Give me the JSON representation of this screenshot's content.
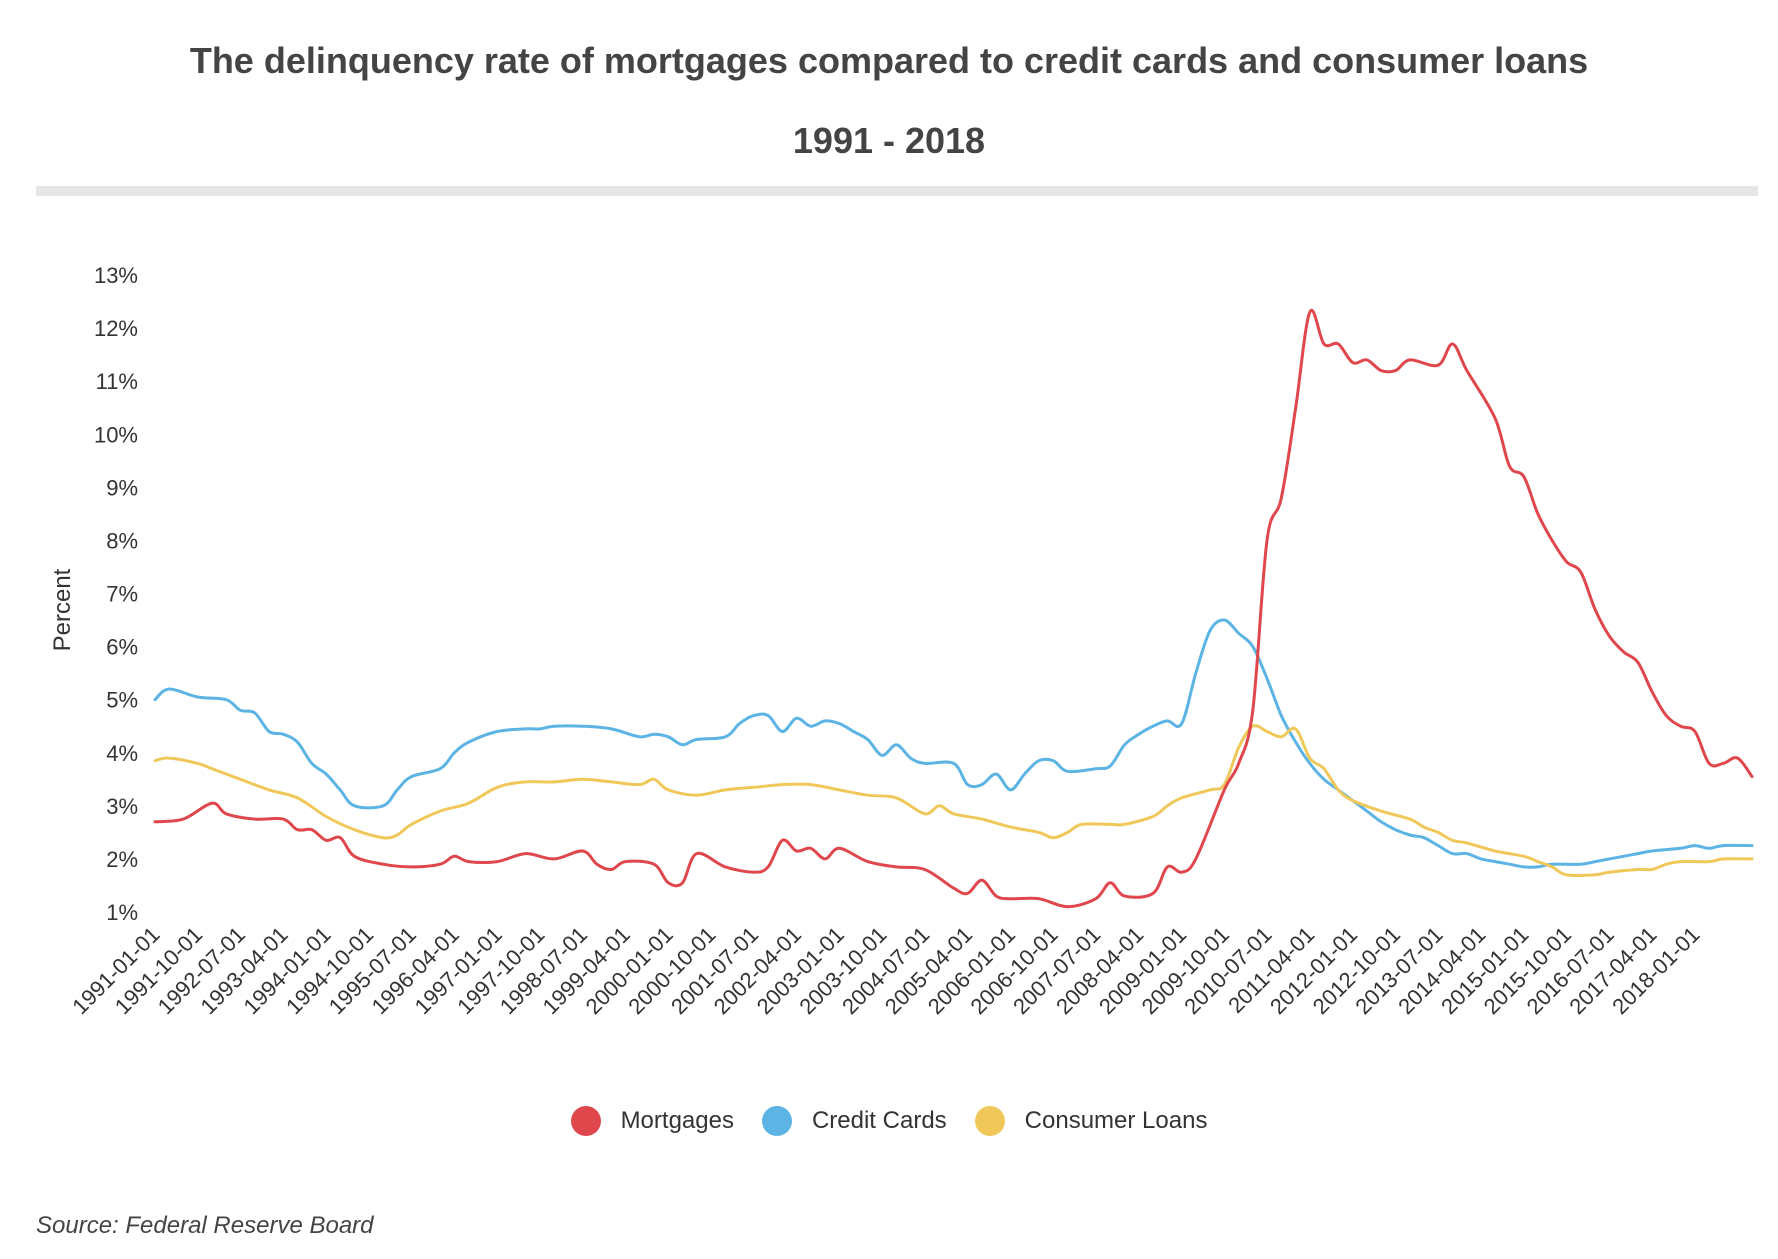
{
  "chart_data": {
    "type": "line",
    "title": "The delinquency rate of mortgages compared to credit cards and consumer loans",
    "subtitle": "1991 - 2018",
    "ylabel": "Percent",
    "xlabel": "",
    "ylim": [
      1,
      13
    ],
    "yticks": [
      "1%",
      "2%",
      "3%",
      "4%",
      "5%",
      "6%",
      "7%",
      "8%",
      "9%",
      "10%",
      "11%",
      "12%",
      "13%"
    ],
    "ytick_values": [
      1,
      2,
      3,
      4,
      5,
      6,
      7,
      8,
      9,
      10,
      11,
      12,
      13
    ],
    "xtick_labels": [
      "1991-01-01",
      "1991-10-01",
      "1992-07-01",
      "1993-04-01",
      "1994-01-01",
      "1994-10-01",
      "1995-07-01",
      "1996-04-01",
      "1997-01-01",
      "1997-10-01",
      "1998-07-01",
      "1999-04-01",
      "2000-01-01",
      "2000-10-01",
      "2001-07-01",
      "2002-04-01",
      "2003-01-01",
      "2003-10-01",
      "2004-07-01",
      "2005-04-01",
      "2006-01-01",
      "2006-10-01",
      "2007-07-01",
      "2008-04-01",
      "2009-01-01",
      "2009-10-01",
      "2010-07-01",
      "2011-04-01",
      "2012-01-01",
      "2012-10-01",
      "2013-07-01",
      "2014-04-01",
      "2015-01-01",
      "2015-10-01",
      "2016-07-01",
      "2017-04-01",
      "2018-01-01"
    ],
    "x_start": "1991-01-01",
    "x_end": "2018-01-01",
    "grid": false,
    "legend": "bottom",
    "series": [
      {
        "name": "Mortgages",
        "color": "#e0474c",
        "points": [
          [
            "1991-01-01",
            2.7
          ],
          [
            "1991-07-01",
            2.75
          ],
          [
            "1992-01-01",
            3.05
          ],
          [
            "1992-04-01",
            2.85
          ],
          [
            "1992-10-01",
            2.75
          ],
          [
            "1993-04-01",
            2.75
          ],
          [
            "1993-07-01",
            2.55
          ],
          [
            "1993-10-01",
            2.55
          ],
          [
            "1994-01-01",
            2.35
          ],
          [
            "1994-04-01",
            2.4
          ],
          [
            "1994-07-01",
            2.05
          ],
          [
            "1995-01-01",
            1.9
          ],
          [
            "1995-07-01",
            1.85
          ],
          [
            "1996-01-01",
            1.9
          ],
          [
            "1996-04-01",
            2.05
          ],
          [
            "1996-07-01",
            1.95
          ],
          [
            "1997-01-01",
            1.95
          ],
          [
            "1997-07-01",
            2.1
          ],
          [
            "1998-01-01",
            2.0
          ],
          [
            "1998-07-01",
            2.15
          ],
          [
            "1998-10-01",
            1.9
          ],
          [
            "1999-01-01",
            1.8
          ],
          [
            "1999-04-01",
            1.95
          ],
          [
            "1999-10-01",
            1.9
          ],
          [
            "2000-01-01",
            1.55
          ],
          [
            "2000-04-01",
            1.55
          ],
          [
            "2000-07-01",
            2.1
          ],
          [
            "2001-01-01",
            1.85
          ],
          [
            "2001-07-01",
            1.75
          ],
          [
            "2001-10-01",
            1.85
          ],
          [
            "2002-01-01",
            2.35
          ],
          [
            "2002-04-01",
            2.15
          ],
          [
            "2002-07-01",
            2.2
          ],
          [
            "2002-10-01",
            2.0
          ],
          [
            "2003-01-01",
            2.2
          ],
          [
            "2003-07-01",
            1.95
          ],
          [
            "2004-01-01",
            1.85
          ],
          [
            "2004-07-01",
            1.8
          ],
          [
            "2005-01-01",
            1.45
          ],
          [
            "2005-04-01",
            1.35
          ],
          [
            "2005-07-01",
            1.6
          ],
          [
            "2005-10-01",
            1.3
          ],
          [
            "2006-01-01",
            1.25
          ],
          [
            "2006-07-01",
            1.25
          ],
          [
            "2007-01-01",
            1.1
          ],
          [
            "2007-07-01",
            1.25
          ],
          [
            "2007-10-01",
            1.55
          ],
          [
            "2008-01-01",
            1.3
          ],
          [
            "2008-07-01",
            1.35
          ],
          [
            "2008-10-01",
            1.85
          ],
          [
            "2009-01-01",
            1.75
          ],
          [
            "2009-04-01",
            2.0
          ],
          [
            "2009-10-01",
            3.3
          ],
          [
            "2010-01-01",
            3.8
          ],
          [
            "2010-04-01",
            4.8
          ],
          [
            "2010-07-01",
            8.0
          ],
          [
            "2010-10-01",
            8.8
          ],
          [
            "2011-01-01",
            10.5
          ],
          [
            "2011-04-01",
            12.3
          ],
          [
            "2011-07-01",
            11.7
          ],
          [
            "2011-10-01",
            11.7
          ],
          [
            "2012-01-01",
            11.35
          ],
          [
            "2012-04-01",
            11.4
          ],
          [
            "2012-07-01",
            11.2
          ],
          [
            "2012-10-01",
            11.2
          ],
          [
            "2013-01-01",
            11.4
          ],
          [
            "2013-07-01",
            11.3
          ],
          [
            "2013-10-01",
            11.7
          ],
          [
            "2014-01-01",
            11.2
          ],
          [
            "2014-07-01",
            10.3
          ],
          [
            "2014-10-01",
            9.4
          ],
          [
            "2015-01-01",
            9.2
          ],
          [
            "2015-04-01",
            8.5
          ],
          [
            "2015-07-01",
            8.0
          ],
          [
            "2015-10-01",
            7.6
          ],
          [
            "2016-01-01",
            7.4
          ],
          [
            "2016-04-01",
            6.7
          ],
          [
            "2016-07-01",
            6.2
          ],
          [
            "2016-10-01",
            5.9
          ],
          [
            "2017-01-01",
            5.7
          ],
          [
            "2017-04-01",
            5.15
          ],
          [
            "2017-07-01",
            4.7
          ],
          [
            "2017-10-01",
            4.5
          ],
          [
            "2018-01-01",
            4.4
          ],
          [
            "2018-04-01",
            3.8
          ],
          [
            "2018-07-01",
            3.8
          ],
          [
            "2018-10-01",
            3.9
          ],
          [
            "2019-01-01",
            3.55
          ]
        ]
      },
      {
        "name": "Credit Cards",
        "color": "#5cb4e5",
        "points": [
          [
            "1991-01-01",
            5.0
          ],
          [
            "1991-04-01",
            5.2
          ],
          [
            "1991-10-01",
            5.05
          ],
          [
            "1992-04-01",
            5.0
          ],
          [
            "1992-07-01",
            4.8
          ],
          [
            "1992-10-01",
            4.75
          ],
          [
            "1993-01-01",
            4.4
          ],
          [
            "1993-04-01",
            4.35
          ],
          [
            "1993-07-01",
            4.2
          ],
          [
            "1993-10-01",
            3.8
          ],
          [
            "1994-01-01",
            3.6
          ],
          [
            "1994-04-01",
            3.3
          ],
          [
            "1994-07-01",
            3.0
          ],
          [
            "1995-01-01",
            3.0
          ],
          [
            "1995-04-01",
            3.3
          ],
          [
            "1995-07-01",
            3.55
          ],
          [
            "1996-01-01",
            3.7
          ],
          [
            "1996-04-01",
            4.0
          ],
          [
            "1996-07-01",
            4.2
          ],
          [
            "1997-01-01",
            4.4
          ],
          [
            "1997-07-01",
            4.45
          ],
          [
            "1997-10-01",
            4.45
          ],
          [
            "1998-01-01",
            4.5
          ],
          [
            "1998-07-01",
            4.5
          ],
          [
            "1999-01-01",
            4.45
          ],
          [
            "1999-07-01",
            4.3
          ],
          [
            "1999-10-01",
            4.35
          ],
          [
            "2000-01-01",
            4.3
          ],
          [
            "2000-04-01",
            4.15
          ],
          [
            "2000-07-01",
            4.25
          ],
          [
            "2001-01-01",
            4.3
          ],
          [
            "2001-04-01",
            4.55
          ],
          [
            "2001-07-01",
            4.7
          ],
          [
            "2001-10-01",
            4.7
          ],
          [
            "2002-01-01",
            4.4
          ],
          [
            "2002-04-01",
            4.65
          ],
          [
            "2002-07-01",
            4.5
          ],
          [
            "2002-10-01",
            4.6
          ],
          [
            "2003-01-01",
            4.55
          ],
          [
            "2003-04-01",
            4.4
          ],
          [
            "2003-07-01",
            4.25
          ],
          [
            "2003-10-01",
            3.95
          ],
          [
            "2004-01-01",
            4.15
          ],
          [
            "2004-04-01",
            3.9
          ],
          [
            "2004-07-01",
            3.8
          ],
          [
            "2005-01-01",
            3.8
          ],
          [
            "2005-04-01",
            3.4
          ],
          [
            "2005-07-01",
            3.4
          ],
          [
            "2005-10-01",
            3.6
          ],
          [
            "2006-01-01",
            3.3
          ],
          [
            "2006-04-01",
            3.6
          ],
          [
            "2006-07-01",
            3.85
          ],
          [
            "2006-10-01",
            3.85
          ],
          [
            "2007-01-01",
            3.65
          ],
          [
            "2007-07-01",
            3.7
          ],
          [
            "2007-10-01",
            3.75
          ],
          [
            "2008-01-01",
            4.15
          ],
          [
            "2008-04-01",
            4.35
          ],
          [
            "2008-07-01",
            4.5
          ],
          [
            "2008-10-01",
            4.6
          ],
          [
            "2009-01-01",
            4.55
          ],
          [
            "2009-04-01",
            5.5
          ],
          [
            "2009-07-01",
            6.3
          ],
          [
            "2009-10-01",
            6.5
          ],
          [
            "2010-01-01",
            6.25
          ],
          [
            "2010-04-01",
            6.0
          ],
          [
            "2010-07-01",
            5.4
          ],
          [
            "2010-10-01",
            4.7
          ],
          [
            "2011-01-01",
            4.2
          ],
          [
            "2011-04-01",
            3.8
          ],
          [
            "2011-07-01",
            3.5
          ],
          [
            "2011-10-01",
            3.3
          ],
          [
            "2012-01-01",
            3.1
          ],
          [
            "2012-04-01",
            2.9
          ],
          [
            "2012-07-01",
            2.7
          ],
          [
            "2012-10-01",
            2.55
          ],
          [
            "2013-01-01",
            2.45
          ],
          [
            "2013-04-01",
            2.4
          ],
          [
            "2013-07-01",
            2.25
          ],
          [
            "2013-10-01",
            2.1
          ],
          [
            "2014-01-01",
            2.1
          ],
          [
            "2014-04-01",
            2.0
          ],
          [
            "2014-07-01",
            1.95
          ],
          [
            "2014-10-01",
            1.9
          ],
          [
            "2015-01-01",
            1.85
          ],
          [
            "2015-04-01",
            1.85
          ],
          [
            "2015-07-01",
            1.9
          ],
          [
            "2016-01-01",
            1.9
          ],
          [
            "2016-04-01",
            1.95
          ],
          [
            "2016-10-01",
            2.05
          ],
          [
            "2017-01-01",
            2.1
          ],
          [
            "2017-04-01",
            2.15
          ],
          [
            "2017-10-01",
            2.2
          ],
          [
            "2018-01-01",
            2.25
          ],
          [
            "2018-04-01",
            2.2
          ],
          [
            "2018-07-01",
            2.25
          ],
          [
            "2019-01-01",
            2.25
          ]
        ]
      },
      {
        "name": "Consumer Loans",
        "color": "#f0c85a",
        "points": [
          [
            "1991-01-01",
            3.85
          ],
          [
            "1991-04-01",
            3.9
          ],
          [
            "1991-10-01",
            3.8
          ],
          [
            "1992-01-01",
            3.7
          ],
          [
            "1992-07-01",
            3.5
          ],
          [
            "1993-01-01",
            3.3
          ],
          [
            "1993-07-01",
            3.15
          ],
          [
            "1994-01-01",
            2.8
          ],
          [
            "1994-07-01",
            2.55
          ],
          [
            "1995-01-01",
            2.4
          ],
          [
            "1995-04-01",
            2.45
          ],
          [
            "1995-07-01",
            2.65
          ],
          [
            "1996-01-01",
            2.9
          ],
          [
            "1996-07-01",
            3.05
          ],
          [
            "1997-01-01",
            3.35
          ],
          [
            "1997-07-01",
            3.45
          ],
          [
            "1998-01-01",
            3.45
          ],
          [
            "1998-07-01",
            3.5
          ],
          [
            "1999-01-01",
            3.45
          ],
          [
            "1999-07-01",
            3.4
          ],
          [
            "1999-10-01",
            3.5
          ],
          [
            "2000-01-01",
            3.3
          ],
          [
            "2000-07-01",
            3.2
          ],
          [
            "2001-01-01",
            3.3
          ],
          [
            "2001-07-01",
            3.35
          ],
          [
            "2002-01-01",
            3.4
          ],
          [
            "2002-07-01",
            3.4
          ],
          [
            "2003-01-01",
            3.3
          ],
          [
            "2003-07-01",
            3.2
          ],
          [
            "2004-01-01",
            3.15
          ],
          [
            "2004-07-01",
            2.85
          ],
          [
            "2004-10-01",
            3.0
          ],
          [
            "2005-01-01",
            2.85
          ],
          [
            "2005-07-01",
            2.75
          ],
          [
            "2006-01-01",
            2.6
          ],
          [
            "2006-07-01",
            2.5
          ],
          [
            "2006-10-01",
            2.4
          ],
          [
            "2007-01-01",
            2.5
          ],
          [
            "2007-04-01",
            2.65
          ],
          [
            "2007-10-01",
            2.65
          ],
          [
            "2008-01-01",
            2.65
          ],
          [
            "2008-07-01",
            2.8
          ],
          [
            "2008-10-01",
            3.0
          ],
          [
            "2009-01-01",
            3.15
          ],
          [
            "2009-07-01",
            3.3
          ],
          [
            "2009-10-01",
            3.4
          ],
          [
            "2010-01-01",
            4.1
          ],
          [
            "2010-04-01",
            4.5
          ],
          [
            "2010-07-01",
            4.4
          ],
          [
            "2010-10-01",
            4.3
          ],
          [
            "2011-01-01",
            4.45
          ],
          [
            "2011-04-01",
            3.9
          ],
          [
            "2011-07-01",
            3.7
          ],
          [
            "2011-10-01",
            3.3
          ],
          [
            "2012-01-01",
            3.1
          ],
          [
            "2012-07-01",
            2.9
          ],
          [
            "2013-01-01",
            2.75
          ],
          [
            "2013-04-01",
            2.6
          ],
          [
            "2013-07-01",
            2.5
          ],
          [
            "2013-10-01",
            2.35
          ],
          [
            "2014-01-01",
            2.3
          ],
          [
            "2014-07-01",
            2.15
          ],
          [
            "2015-01-01",
            2.05
          ],
          [
            "2015-04-01",
            1.95
          ],
          [
            "2015-07-01",
            1.85
          ],
          [
            "2015-10-01",
            1.7
          ],
          [
            "2016-04-01",
            1.7
          ],
          [
            "2016-07-01",
            1.75
          ],
          [
            "2017-01-01",
            1.8
          ],
          [
            "2017-04-01",
            1.8
          ],
          [
            "2017-07-01",
            1.9
          ],
          [
            "2017-10-01",
            1.95
          ],
          [
            "2018-04-01",
            1.95
          ],
          [
            "2018-07-01",
            2.0
          ],
          [
            "2019-01-01",
            2.0
          ]
        ]
      }
    ]
  },
  "footer": {
    "source": "Source: Federal Reserve Board"
  }
}
